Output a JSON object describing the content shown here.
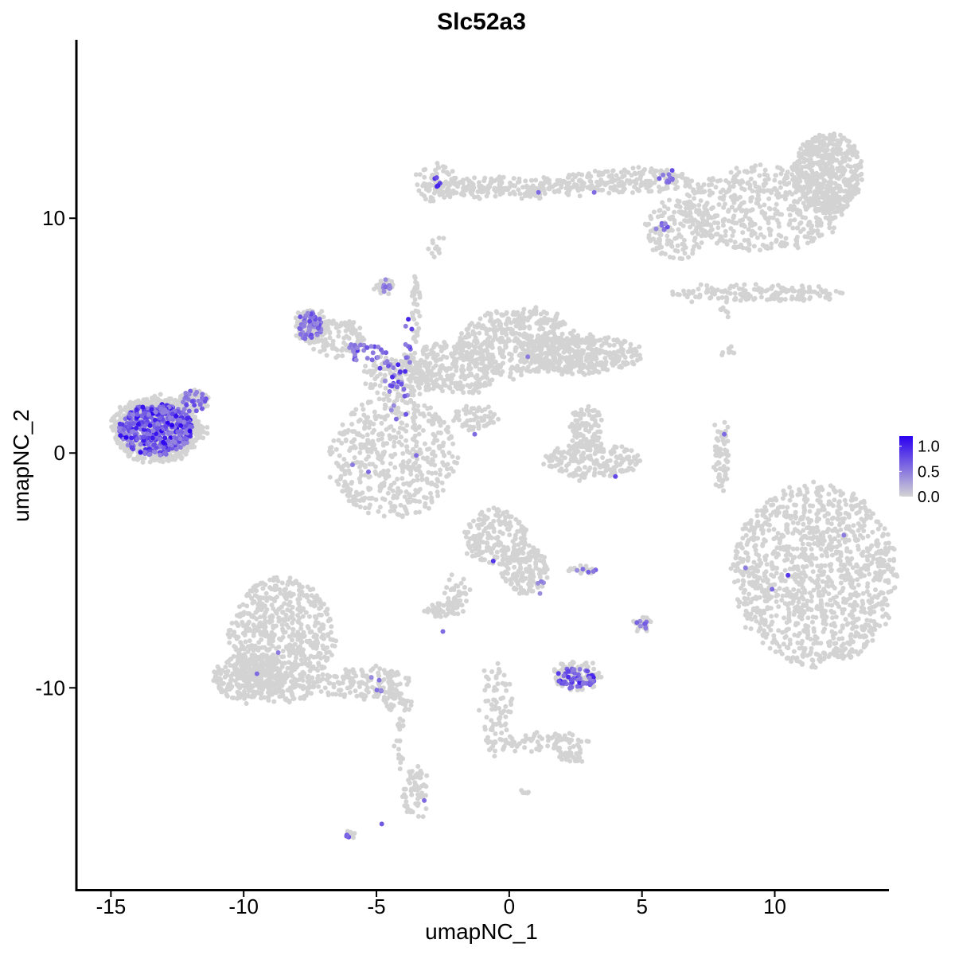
{
  "chart_data": {
    "type": "scatter",
    "title": "Slc52a3",
    "xlabel": "umapNC_1",
    "ylabel": "umapNC_2",
    "xlim": [
      -16.3,
      14.3
    ],
    "ylim": [
      -18.6,
      17.6
    ],
    "x_ticks": [
      -15,
      -10,
      -5,
      0,
      5,
      10
    ],
    "x_tick_labels": [
      "-15",
      "-10",
      "-5",
      "0",
      "5",
      "10"
    ],
    "y_ticks": [
      -10,
      0,
      10
    ],
    "y_tick_labels": [
      "-10",
      "0",
      "10"
    ],
    "grid": false,
    "background_color": "#D3D3D3",
    "low_color": "#D3D3D3",
    "high_color": "#2A00F0",
    "legend": {
      "position": "right",
      "type": "colorbar",
      "min": 0.0,
      "max": 1.2,
      "breaks": [
        1.0,
        0.5,
        0.0
      ],
      "labels": [
        "1.0",
        "0.5",
        "0.0"
      ]
    },
    "clusters": [
      {
        "cx": 12.0,
        "cy": 11.9,
        "rx": 1.3,
        "ry": 1.7,
        "n": 500
      },
      {
        "cx": 9.5,
        "cy": 10.4,
        "rx": 3.1,
        "ry": 1.8,
        "n": 500
      },
      {
        "cx": 6.3,
        "cy": 9.5,
        "rx": 1.2,
        "ry": 1.3,
        "n": 140
      },
      {
        "cx": 4.5,
        "cy": 11.6,
        "rx": 2.5,
        "ry": 0.5,
        "n": 180
      },
      {
        "cx": 0.1,
        "cy": 11.3,
        "rx": 3.3,
        "ry": 0.45,
        "n": 220
      },
      {
        "cx": -2.8,
        "cy": 11.5,
        "rx": 0.8,
        "ry": 0.8,
        "n": 60
      },
      {
        "cx": -2.7,
        "cy": 8.7,
        "rx": 0.3,
        "ry": 0.5,
        "n": 12
      },
      {
        "cx": 9.3,
        "cy": 6.8,
        "rx": 3.3,
        "ry": 0.35,
        "n": 150
      },
      {
        "cx": 8.2,
        "cy": 4.4,
        "rx": 0.3,
        "ry": 0.3,
        "n": 8
      },
      {
        "cx": 8.1,
        "cy": 6.0,
        "rx": 0.3,
        "ry": 0.2,
        "n": 6
      },
      {
        "cx": -4.4,
        "cy": -0.2,
        "rx": 2.4,
        "ry": 2.6,
        "n": 500
      },
      {
        "cx": -2.2,
        "cy": 3.6,
        "rx": 1.9,
        "ry": 1.1,
        "n": 300
      },
      {
        "cx": 0.4,
        "cy": 4.7,
        "rx": 2.3,
        "ry": 1.5,
        "n": 450
      },
      {
        "cx": 2.7,
        "cy": 4.2,
        "rx": 2.3,
        "ry": 0.8,
        "n": 350
      },
      {
        "cx": -1.3,
        "cy": 1.5,
        "rx": 0.8,
        "ry": 0.5,
        "n": 60
      },
      {
        "cx": -4.2,
        "cy": 3.2,
        "rx": 1.3,
        "ry": 1.0,
        "n": 120
      },
      {
        "cx": -3.5,
        "cy": 6.2,
        "rx": 0.2,
        "ry": 1.4,
        "n": 40
      },
      {
        "cx": -4.7,
        "cy": 7.1,
        "rx": 0.35,
        "ry": 0.4,
        "n": 25
      },
      {
        "cx": -6.5,
        "cy": 4.9,
        "rx": 1.1,
        "ry": 0.8,
        "n": 120
      },
      {
        "cx": -7.5,
        "cy": 5.4,
        "rx": 0.6,
        "ry": 0.8,
        "n": 80
      },
      {
        "cx": -13.3,
        "cy": 1.0,
        "rx": 1.7,
        "ry": 1.4,
        "n": 700
      },
      {
        "cx": -11.9,
        "cy": 2.2,
        "rx": 0.6,
        "ry": 0.5,
        "n": 60
      },
      {
        "cx": -11.9,
        "cy": 0.9,
        "rx": 0.6,
        "ry": 0.5,
        "n": 50
      },
      {
        "cx": 3.1,
        "cy": -0.3,
        "rx": 1.8,
        "ry": 0.8,
        "n": 200
      },
      {
        "cx": 2.9,
        "cy": 1.1,
        "rx": 0.6,
        "ry": 0.9,
        "n": 90
      },
      {
        "cx": 8.0,
        "cy": -0.1,
        "rx": 0.25,
        "ry": 1.5,
        "n": 70
      },
      {
        "cx": 11.5,
        "cy": -5.2,
        "rx": 3.1,
        "ry": 3.9,
        "n": 1200
      },
      {
        "cx": -0.5,
        "cy": -3.6,
        "rx": 1.2,
        "ry": 1.2,
        "n": 200
      },
      {
        "cx": 0.6,
        "cy": -5.0,
        "rx": 0.9,
        "ry": 1.0,
        "n": 150
      },
      {
        "cx": -2.5,
        "cy": -6.7,
        "rx": 0.7,
        "ry": 0.3,
        "n": 50
      },
      {
        "cx": -1.9,
        "cy": -6.0,
        "rx": 0.5,
        "ry": 0.9,
        "n": 40
      },
      {
        "cx": 2.7,
        "cy": -5.0,
        "rx": 0.6,
        "ry": 0.2,
        "n": 20
      },
      {
        "cx": 5.0,
        "cy": -7.3,
        "rx": 0.3,
        "ry": 0.4,
        "n": 25
      },
      {
        "cx": 2.5,
        "cy": -9.5,
        "rx": 0.9,
        "ry": 0.6,
        "n": 110
      },
      {
        "cx": -0.5,
        "cy": -11.0,
        "rx": 0.6,
        "ry": 2.0,
        "n": 90
      },
      {
        "cx": 1.4,
        "cy": -12.3,
        "rx": 1.6,
        "ry": 0.4,
        "n": 70
      },
      {
        "cx": 2.3,
        "cy": -12.9,
        "rx": 0.5,
        "ry": 0.3,
        "n": 30
      },
      {
        "cx": -8.6,
        "cy": -8.0,
        "rx": 2.0,
        "ry": 2.7,
        "n": 700
      },
      {
        "cx": -9.8,
        "cy": -9.6,
        "rx": 1.3,
        "ry": 1.0,
        "n": 250
      },
      {
        "cx": -5.5,
        "cy": -9.8,
        "rx": 1.8,
        "ry": 0.7,
        "n": 150
      },
      {
        "cx": -4.2,
        "cy": -10.6,
        "rx": 0.6,
        "ry": 0.4,
        "n": 40
      },
      {
        "cx": -3.5,
        "cy": -14.5,
        "rx": 0.5,
        "ry": 1.2,
        "n": 60
      },
      {
        "cx": -4.1,
        "cy": -12.3,
        "rx": 0.2,
        "ry": 1.2,
        "n": 20
      },
      {
        "cx": -6.0,
        "cy": -16.3,
        "rx": 0.15,
        "ry": 0.1,
        "n": 8
      },
      {
        "cx": 0.6,
        "cy": -14.4,
        "rx": 0.15,
        "ry": 0.1,
        "n": 6
      }
    ],
    "expressing_clusters": [
      {
        "cx": -13.3,
        "cy": 1.0,
        "rx": 1.4,
        "ry": 1.1,
        "n": 420,
        "vmin": 0.45,
        "vmax": 1.2
      },
      {
        "cx": -11.9,
        "cy": 2.2,
        "rx": 0.5,
        "ry": 0.45,
        "n": 25,
        "vmin": 0.45,
        "vmax": 0.8
      },
      {
        "cx": -7.5,
        "cy": 5.4,
        "rx": 0.5,
        "ry": 0.6,
        "n": 55,
        "vmin": 0.4,
        "vmax": 0.8
      },
      {
        "cx": -5.5,
        "cy": 4.3,
        "rx": 0.9,
        "ry": 0.4,
        "n": 30,
        "vmin": 0.4,
        "vmax": 0.9
      },
      {
        "cx": -4.3,
        "cy": 3.6,
        "rx": 0.6,
        "ry": 0.8,
        "n": 22,
        "vmin": 0.4,
        "vmax": 1.0
      },
      {
        "cx": -4.2,
        "cy": 2.1,
        "rx": 0.4,
        "ry": 1.0,
        "n": 10,
        "vmin": 0.4,
        "vmax": 0.8
      },
      {
        "cx": -4.7,
        "cy": 7.1,
        "rx": 0.3,
        "ry": 0.3,
        "n": 8,
        "vmin": 0.4,
        "vmax": 0.7
      },
      {
        "cx": -3.8,
        "cy": 5.0,
        "rx": 0.15,
        "ry": 0.8,
        "n": 6,
        "vmin": 0.5,
        "vmax": 1.0
      },
      {
        "cx": 2.5,
        "cy": -9.6,
        "rx": 0.75,
        "ry": 0.45,
        "n": 55,
        "vmin": 0.5,
        "vmax": 1.1
      },
      {
        "cx": 5.0,
        "cy": -7.3,
        "rx": 0.25,
        "ry": 0.3,
        "n": 8,
        "vmin": 0.4,
        "vmax": 0.7
      },
      {
        "cx": 6.0,
        "cy": 11.8,
        "rx": 0.4,
        "ry": 0.3,
        "n": 10,
        "vmin": 0.5,
        "vmax": 1.0
      },
      {
        "cx": 5.8,
        "cy": 9.5,
        "rx": 0.3,
        "ry": 0.3,
        "n": 7,
        "vmin": 0.4,
        "vmax": 0.8
      },
      {
        "cx": -2.7,
        "cy": 11.5,
        "rx": 0.3,
        "ry": 0.4,
        "n": 5,
        "vmin": 0.5,
        "vmax": 1.0
      },
      {
        "cx": 2.9,
        "cy": -5.0,
        "rx": 0.4,
        "ry": 0.1,
        "n": 5,
        "vmin": 0.4,
        "vmax": 0.8
      },
      {
        "cx": -5.0,
        "cy": -9.9,
        "rx": 0.5,
        "ry": 0.4,
        "n": 5,
        "vmin": 0.4,
        "vmax": 0.8
      },
      {
        "cx": -6.0,
        "cy": -16.3,
        "rx": 0.15,
        "ry": 0.1,
        "n": 4,
        "vmin": 0.6,
        "vmax": 0.9
      },
      {
        "cx": 1.1,
        "cy": -5.5,
        "rx": 0.2,
        "ry": 0.6,
        "n": 4,
        "vmin": 0.4,
        "vmax": 0.7
      }
    ],
    "highlighted_points": [
      {
        "x": 10.5,
        "y": -5.2,
        "v": 0.9
      },
      {
        "x": 12.6,
        "y": -3.5,
        "v": 0.5
      },
      {
        "x": 9.9,
        "y": -5.8,
        "v": 0.6
      },
      {
        "x": 8.9,
        "y": -4.9,
        "v": 0.5
      },
      {
        "x": -8.7,
        "y": -8.5,
        "v": 0.5
      },
      {
        "x": -9.5,
        "y": -9.4,
        "v": 0.6
      },
      {
        "x": -0.6,
        "y": -4.6,
        "v": 0.9
      },
      {
        "x": -2.5,
        "y": -7.6,
        "v": 0.6
      },
      {
        "x": 4.0,
        "y": -1.0,
        "v": 0.8
      },
      {
        "x": -5.3,
        "y": -0.8,
        "v": 0.6
      },
      {
        "x": -5.9,
        "y": -0.5,
        "v": 0.5
      },
      {
        "x": -3.8,
        "y": 5.7,
        "v": 1.0
      },
      {
        "x": -3.2,
        "y": -14.8,
        "v": 0.6
      },
      {
        "x": -4.8,
        "y": -15.8,
        "v": 0.7
      },
      {
        "x": 8.1,
        "y": 0.8,
        "v": 0.6
      },
      {
        "x": -1.3,
        "y": 0.8,
        "v": 0.6
      },
      {
        "x": -3.5,
        "y": -0.1,
        "v": 0.6
      },
      {
        "x": 0.7,
        "y": 4.1,
        "v": 0.5
      },
      {
        "x": 3.2,
        "y": 11.1,
        "v": 0.6
      },
      {
        "x": 1.1,
        "y": 11.1,
        "v": 0.6
      }
    ]
  }
}
